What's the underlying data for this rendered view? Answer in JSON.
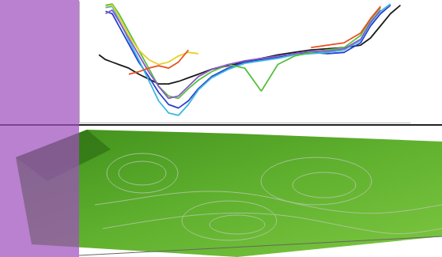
{
  "chart_data": {
    "type": "line",
    "tick_labels": false,
    "grid": false,
    "xlim": [
      0,
      100
    ],
    "ylim": [
      0,
      100
    ],
    "x": [
      6,
      8,
      10,
      12,
      15,
      18,
      21,
      24,
      27,
      30,
      33,
      36,
      40,
      45,
      50,
      55,
      60,
      65,
      70,
      75,
      80,
      85,
      88,
      91,
      94,
      97,
      100
    ],
    "series": [
      {
        "color": "#1a1a1a",
        "values": [
          56,
          52,
          50,
          48,
          45,
          40,
          36,
          32,
          32,
          34,
          37,
          40,
          44,
          47,
          50,
          53,
          56,
          58,
          60,
          61,
          62,
          64,
          70,
          80,
          90,
          97,
          null
        ]
      },
      {
        "color": "#2a3fd0",
        "values": [
          null,
          92,
          90,
          80,
          65,
          50,
          38,
          25,
          15,
          12,
          18,
          28,
          38,
          45,
          50,
          52,
          54,
          57,
          58,
          57,
          58,
          66,
          80,
          90,
          97,
          null,
          null
        ]
      },
      {
        "color": "#3ab8e0",
        "values": [
          null,
          95,
          96,
          85,
          68,
          52,
          35,
          18,
          8,
          6,
          15,
          27,
          37,
          44,
          49,
          51,
          53,
          56,
          57,
          58,
          60,
          68,
          82,
          92,
          98,
          null,
          null
        ]
      },
      {
        "color": "#58c040",
        "values": [
          null,
          97,
          98,
          90,
          75,
          60,
          45,
          30,
          22,
          20,
          28,
          35,
          42,
          48,
          45,
          26,
          48,
          55,
          58,
          60,
          62,
          72,
          85,
          95,
          null,
          null,
          null
        ]
      },
      {
        "color": "#8a5ac8",
        "values": [
          null,
          90,
          93,
          84,
          70,
          56,
          42,
          30,
          20,
          22,
          30,
          38,
          44,
          48,
          51,
          53,
          55,
          57,
          59,
          59,
          61,
          69,
          83,
          93,
          null,
          null,
          null
        ]
      },
      {
        "color": "#e8d020",
        "values": [
          null,
          96,
          97,
          88,
          72,
          60,
          52,
          48,
          50,
          55,
          58,
          57,
          null,
          null,
          null,
          null,
          null,
          null,
          null,
          null,
          null,
          null,
          null,
          null,
          null,
          null,
          null
        ]
      },
      {
        "color": "#e85020",
        "values": [
          null,
          null,
          null,
          null,
          40,
          42,
          45,
          47,
          45,
          50,
          60,
          null,
          null,
          null,
          null,
          null,
          null,
          null,
          62,
          64,
          66,
          74,
          86,
          96,
          null,
          null,
          null
        ]
      }
    ]
  }
}
